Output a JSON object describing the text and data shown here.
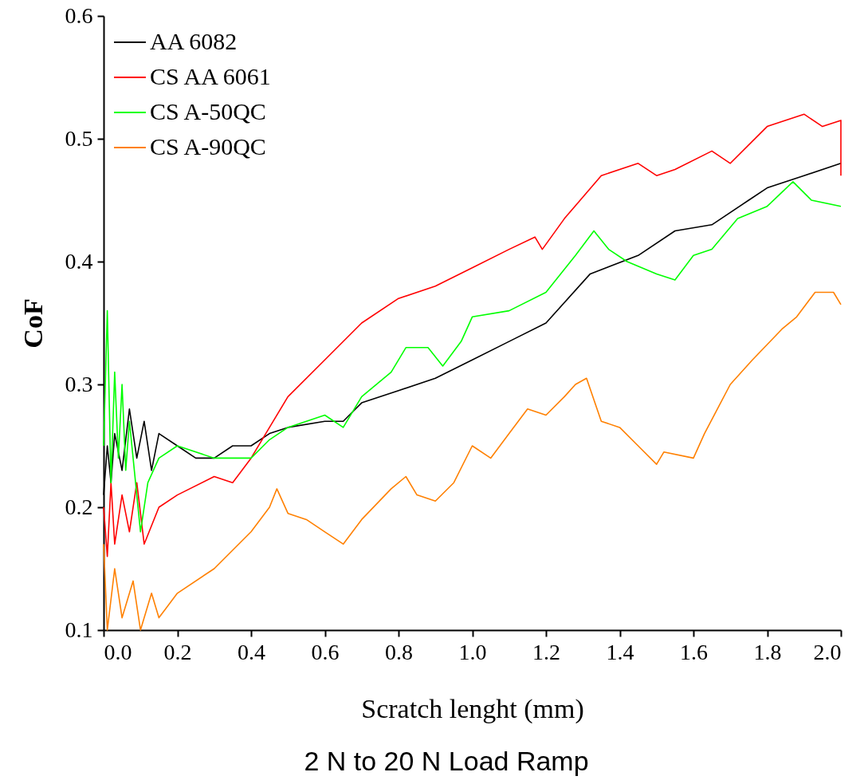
{
  "chart_data": {
    "type": "line",
    "xlabel": "Scratch lenght (mm)",
    "ylabel": "CoF",
    "annotations": [
      "2 N to 20 N Load Ramp"
    ],
    "xlim": [
      0,
      2
    ],
    "ylim": [
      0.1,
      0.6
    ],
    "xticks": [
      {
        "value": 0,
        "label": "0.0"
      },
      0.2,
      0.4,
      0.6,
      0.8,
      {
        "value": 1,
        "label": "1.0"
      },
      1.2,
      1.4,
      1.6,
      1.8,
      {
        "value": 2,
        "label": "2.0"
      }
    ],
    "yticks": [
      0.1,
      0.2,
      0.3,
      0.4,
      0.5,
      0.6
    ],
    "legend": "top left",
    "grid": false,
    "line_style": "solid",
    "marker": "none",
    "series": [
      {
        "name": "AA 6082",
        "color": "#000000",
        "x": [
          0,
          0.01,
          0.02,
          0.03,
          0.05,
          0.07,
          0.09,
          0.11,
          0.13,
          0.15,
          0.2,
          0.25,
          0.3,
          0.35,
          0.4,
          0.45,
          0.5,
          0.6,
          0.65,
          0.7,
          0.8,
          0.9,
          1.0,
          1.1,
          1.2,
          1.32,
          1.45,
          1.55,
          1.65,
          1.75,
          1.8,
          1.9,
          2.0
        ],
        "values": [
          0.21,
          0.25,
          0.22,
          0.26,
          0.23,
          0.28,
          0.24,
          0.27,
          0.23,
          0.26,
          0.25,
          0.24,
          0.24,
          0.25,
          0.25,
          0.26,
          0.265,
          0.27,
          0.27,
          0.285,
          0.295,
          0.305,
          0.32,
          0.335,
          0.35,
          0.39,
          0.405,
          0.425,
          0.43,
          0.45,
          0.46,
          0.47,
          0.48
        ]
      },
      {
        "name": "CS AA 6061",
        "color": "#ff0000",
        "x": [
          0,
          0.01,
          0.02,
          0.03,
          0.05,
          0.07,
          0.09,
          0.11,
          0.15,
          0.2,
          0.3,
          0.35,
          0.4,
          0.45,
          0.5,
          0.6,
          0.7,
          0.8,
          0.9,
          1.0,
          1.1,
          1.17,
          1.19,
          1.25,
          1.35,
          1.45,
          1.5,
          1.55,
          1.65,
          1.7,
          1.8,
          1.9,
          1.95,
          2.0,
          2.0
        ],
        "values": [
          0.2,
          0.16,
          0.22,
          0.17,
          0.21,
          0.18,
          0.22,
          0.17,
          0.2,
          0.21,
          0.225,
          0.22,
          0.24,
          0.265,
          0.29,
          0.32,
          0.35,
          0.37,
          0.38,
          0.395,
          0.41,
          0.42,
          0.41,
          0.435,
          0.47,
          0.48,
          0.47,
          0.475,
          0.49,
          0.48,
          0.51,
          0.52,
          0.51,
          0.515,
          0.47
        ]
      },
      {
        "name": "CS A-50QC",
        "color": "#00ff00",
        "x": [
          0,
          0.01,
          0.02,
          0.03,
          0.04,
          0.05,
          0.06,
          0.07,
          0.1,
          0.12,
          0.15,
          0.2,
          0.3,
          0.4,
          0.45,
          0.5,
          0.6,
          0.65,
          0.7,
          0.78,
          0.82,
          0.88,
          0.92,
          0.97,
          1.0,
          1.1,
          1.2,
          1.28,
          1.33,
          1.37,
          1.42,
          1.5,
          1.55,
          1.6,
          1.65,
          1.72,
          1.8,
          1.87,
          1.92,
          2.0
        ],
        "values": [
          0.25,
          0.36,
          0.22,
          0.31,
          0.24,
          0.3,
          0.23,
          0.27,
          0.18,
          0.22,
          0.24,
          0.25,
          0.24,
          0.24,
          0.255,
          0.265,
          0.275,
          0.265,
          0.29,
          0.31,
          0.33,
          0.33,
          0.315,
          0.335,
          0.355,
          0.36,
          0.375,
          0.405,
          0.425,
          0.41,
          0.4,
          0.39,
          0.385,
          0.405,
          0.41,
          0.435,
          0.445,
          0.465,
          0.45,
          0.445
        ]
      },
      {
        "name": "CS A-90QC",
        "color": "#ff8000",
        "x": [
          0,
          0.01,
          0.03,
          0.05,
          0.08,
          0.1,
          0.13,
          0.15,
          0.2,
          0.3,
          0.4,
          0.45,
          0.47,
          0.5,
          0.55,
          0.6,
          0.65,
          0.7,
          0.78,
          0.82,
          0.85,
          0.9,
          0.95,
          1.0,
          1.05,
          1.1,
          1.15,
          1.2,
          1.25,
          1.28,
          1.31,
          1.35,
          1.4,
          1.45,
          1.5,
          1.52,
          1.6,
          1.63,
          1.7,
          1.76,
          1.84,
          1.88,
          1.93,
          1.98,
          2.0
        ],
        "values": [
          0.17,
          0.1,
          0.15,
          0.11,
          0.14,
          0.1,
          0.13,
          0.11,
          0.13,
          0.15,
          0.18,
          0.2,
          0.215,
          0.195,
          0.19,
          0.18,
          0.17,
          0.19,
          0.215,
          0.225,
          0.21,
          0.205,
          0.22,
          0.25,
          0.24,
          0.26,
          0.28,
          0.275,
          0.29,
          0.3,
          0.305,
          0.27,
          0.265,
          0.25,
          0.235,
          0.245,
          0.24,
          0.26,
          0.3,
          0.32,
          0.345,
          0.355,
          0.375,
          0.375,
          0.365
        ]
      }
    ]
  }
}
